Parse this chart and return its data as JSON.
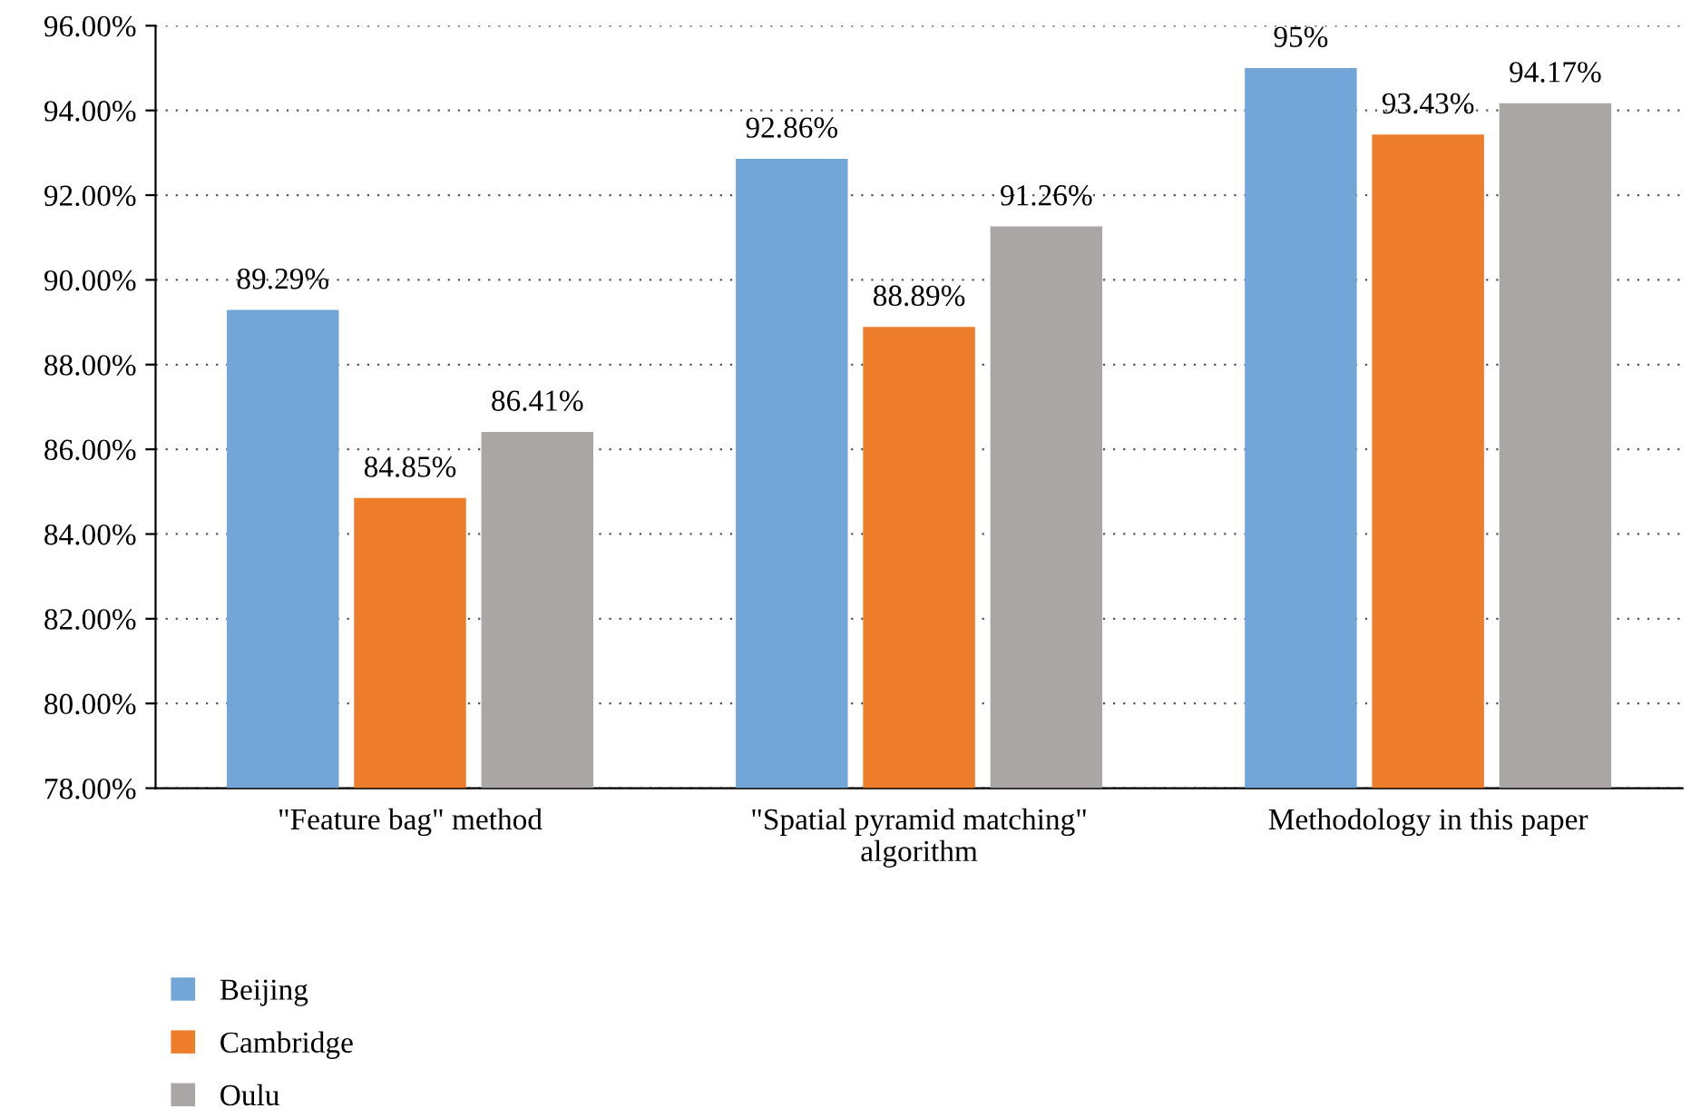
{
  "chart_data": {
    "type": "bar",
    "categories": [
      "\"Feature bag\" method",
      "\"Spatial pyramid matching\"\nalgorithm",
      "Methodology in this paper"
    ],
    "series": [
      {
        "name": "Beijing",
        "color": "#72a6d8",
        "values": [
          89.29,
          92.86,
          95
        ],
        "value_labels": [
          "89.29%",
          "92.86%",
          "95%"
        ]
      },
      {
        "name": "Cambridge",
        "color": "#ed7d2b",
        "values": [
          84.85,
          88.89,
          93.43
        ],
        "value_labels": [
          "84.85%",
          "88.89%",
          "93.43%"
        ]
      },
      {
        "name": "Oulu",
        "color": "#aaa6a5",
        "values": [
          86.41,
          91.26,
          94.17
        ],
        "value_labels": [
          "86.41%",
          "91.26%",
          "94.17%"
        ]
      }
    ],
    "ylim": [
      78,
      96
    ],
    "yticks": [
      {
        "value": 78,
        "label": "78.00%"
      },
      {
        "value": 80,
        "label": "80.00%"
      },
      {
        "value": 82,
        "label": "82.00%"
      },
      {
        "value": 84,
        "label": "84.00%"
      },
      {
        "value": 86,
        "label": "86.00%"
      },
      {
        "value": 88,
        "label": "88.00%"
      },
      {
        "value": 90,
        "label": "90.00%"
      },
      {
        "value": 92,
        "label": "92.00%"
      },
      {
        "value": 94,
        "label": "94.00%"
      },
      {
        "value": 96,
        "label": "96.00%"
      }
    ],
    "grid": "y",
    "line_style": "dotted",
    "legend": "bottom left"
  }
}
